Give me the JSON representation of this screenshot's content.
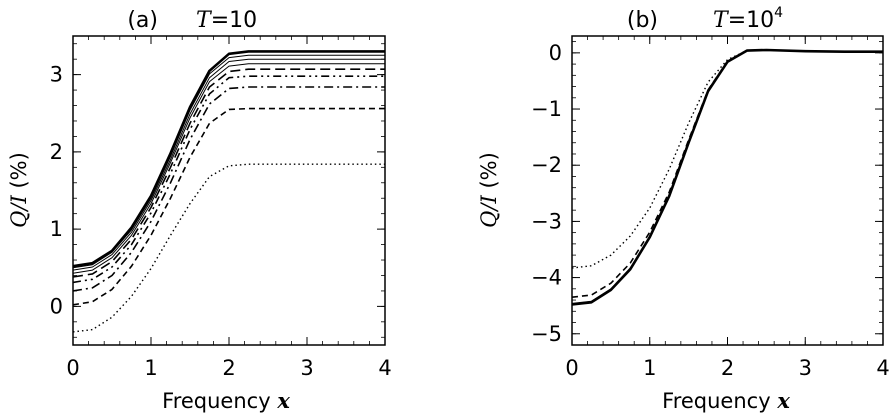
{
  "chart_data": [
    {
      "type": "line",
      "panel_label": "(a)",
      "title_var": "T",
      "title_eq": "=10",
      "xlabel": "Frequency",
      "xlabel_var": "x",
      "ylabel_var": "Q/I",
      "ylabel_unit": "(%)",
      "xlim": [
        0,
        4
      ],
      "ylim": [
        -0.5,
        3.5
      ],
      "xticks": [
        0,
        1,
        2,
        3,
        4
      ],
      "yticks": [
        0,
        1,
        2,
        3
      ],
      "x": [
        0,
        0.25,
        0.5,
        0.75,
        1.0,
        1.25,
        1.5,
        1.75,
        2.0,
        2.25,
        2.5,
        3.0,
        3.5,
        4.0
      ],
      "series": [
        {
          "style": "solid-thick",
          "values": [
            0.52,
            0.56,
            0.72,
            1.02,
            1.43,
            1.98,
            2.58,
            3.05,
            3.27,
            3.3,
            3.3,
            3.3,
            3.3,
            3.3
          ]
        },
        {
          "style": "solid",
          "values": [
            0.5,
            0.54,
            0.7,
            0.99,
            1.4,
            1.94,
            2.54,
            3.01,
            3.22,
            3.25,
            3.25,
            3.25,
            3.25,
            3.25
          ]
        },
        {
          "style": "solid",
          "values": [
            0.47,
            0.51,
            0.67,
            0.96,
            1.37,
            1.9,
            2.49,
            2.96,
            3.17,
            3.2,
            3.2,
            3.2,
            3.2,
            3.2
          ]
        },
        {
          "style": "solid",
          "values": [
            0.43,
            0.47,
            0.63,
            0.92,
            1.33,
            1.86,
            2.44,
            2.91,
            3.11,
            3.14,
            3.14,
            3.14,
            3.14,
            3.14
          ]
        },
        {
          "style": "longdash",
          "values": [
            0.38,
            0.42,
            0.58,
            0.87,
            1.28,
            1.8,
            2.37,
            2.84,
            3.04,
            3.07,
            3.07,
            3.07,
            3.07,
            3.07
          ]
        },
        {
          "style": "dashdotdot",
          "values": [
            0.31,
            0.35,
            0.51,
            0.8,
            1.21,
            1.72,
            2.29,
            2.75,
            2.96,
            2.98,
            2.98,
            2.98,
            2.98,
            2.98
          ]
        },
        {
          "style": "dashdot",
          "values": [
            0.2,
            0.24,
            0.4,
            0.7,
            1.1,
            1.6,
            2.16,
            2.62,
            2.82,
            2.84,
            2.84,
            2.84,
            2.84,
            2.84
          ]
        },
        {
          "style": "dashed",
          "values": [
            0.02,
            0.06,
            0.22,
            0.52,
            0.92,
            1.4,
            1.93,
            2.37,
            2.55,
            2.56,
            2.56,
            2.56,
            2.56,
            2.56
          ]
        },
        {
          "style": "dotted",
          "values": [
            -0.33,
            -0.3,
            -0.14,
            0.13,
            0.49,
            0.92,
            1.33,
            1.68,
            1.82,
            1.84,
            1.84,
            1.84,
            1.84,
            1.84
          ]
        }
      ]
    },
    {
      "type": "line",
      "panel_label": "(b)",
      "title_var": "T",
      "title_eq": "=10",
      "title_sup": "4",
      "xlabel": "Frequency",
      "xlabel_var": "x",
      "ylabel_var": "Q/I",
      "ylabel_unit": "(%)",
      "xlim": [
        0,
        4
      ],
      "ylim": [
        -5.2,
        0.3
      ],
      "xticks": [
        0,
        1,
        2,
        3,
        4
      ],
      "yticks": [
        -5,
        -4,
        -3,
        -2,
        -1,
        0
      ],
      "x": [
        0,
        0.25,
        0.5,
        0.75,
        1.0,
        1.25,
        1.5,
        1.75,
        2.0,
        2.25,
        2.5,
        3.0,
        3.5,
        4.0
      ],
      "series": [
        {
          "style": "solid-thick",
          "values": [
            -4.48,
            -4.44,
            -4.22,
            -3.85,
            -3.28,
            -2.55,
            -1.6,
            -0.68,
            -0.16,
            0.04,
            0.05,
            0.03,
            0.02,
            0.02
          ]
        },
        {
          "style": "solid",
          "values": [
            -4.46,
            -4.42,
            -4.2,
            -3.83,
            -3.27,
            -2.54,
            -1.6,
            -0.68,
            -0.16,
            0.04,
            0.05,
            0.03,
            0.02,
            0.02
          ]
        },
        {
          "style": "dashed",
          "values": [
            -4.35,
            -4.31,
            -4.1,
            -3.74,
            -3.19,
            -2.48,
            -1.55,
            -0.66,
            -0.15,
            0.04,
            0.05,
            0.03,
            0.02,
            0.02
          ]
        },
        {
          "style": "dotted",
          "values": [
            -3.83,
            -3.79,
            -3.6,
            -3.26,
            -2.76,
            -2.07,
            -1.25,
            -0.52,
            -0.12,
            0.04,
            0.05,
            0.03,
            0.02,
            0.02
          ]
        }
      ]
    }
  ]
}
